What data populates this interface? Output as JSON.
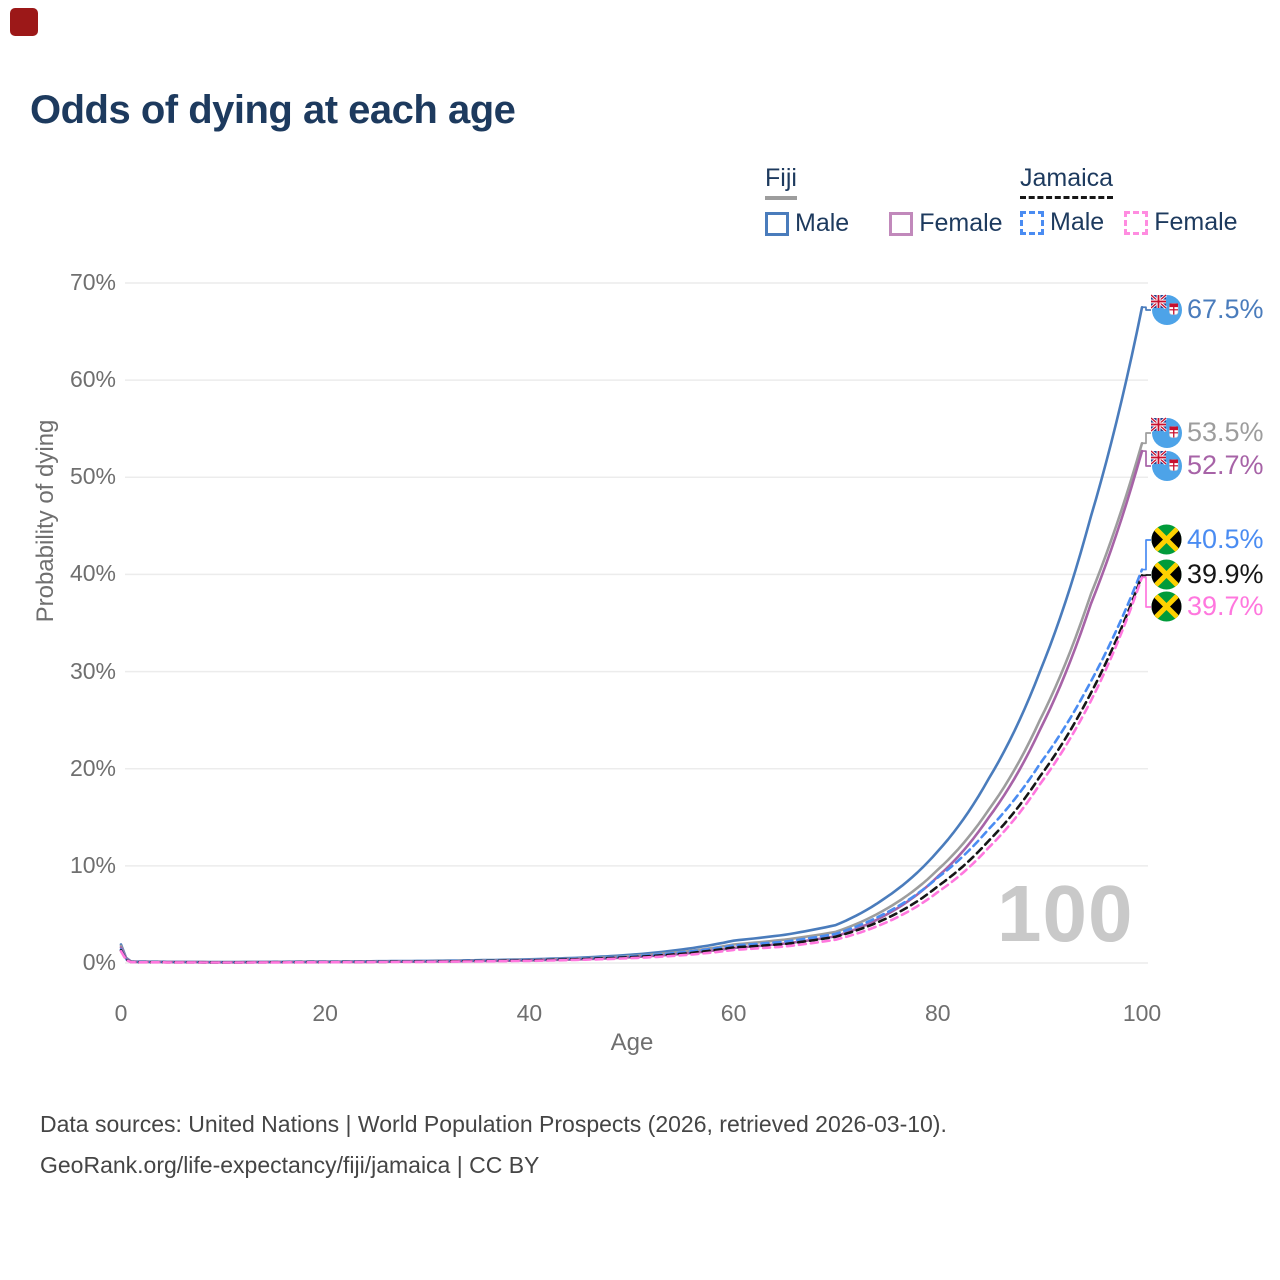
{
  "title": "Odds of dying at each age",
  "legend": {
    "groups": [
      {
        "country": "Fiji",
        "line_style": "solid",
        "line_color": "#9d9d9d",
        "items": [
          {
            "label": "Male",
            "color": "#4a7cbc",
            "dashed": false
          },
          {
            "label": "Female",
            "color": "#c189bb",
            "dashed": false
          }
        ]
      },
      {
        "country": "Jamaica",
        "line_style": "dashed",
        "line_color": "#161616",
        "items": [
          {
            "label": "Male",
            "color": "#4a8cf2",
            "dashed": true
          },
          {
            "label": "Female",
            "color": "#ff8ce0",
            "dashed": true
          }
        ]
      }
    ]
  },
  "footer": {
    "line1": "Data sources: United Nations | World Population Prospects (2026, retrieved 2026-03-10).",
    "line2": "GeoRank.org/life-expectancy/fiji/jamaica | CC BY"
  },
  "chart_data": {
    "type": "line",
    "title": "Odds of dying at each age",
    "xlabel": "Age",
    "ylabel": "Probability of dying",
    "x_ticks": [
      0,
      20,
      40,
      60,
      80,
      100
    ],
    "y_ticks": [
      "0%",
      "10%",
      "20%",
      "30%",
      "40%",
      "50%",
      "60%",
      "70%"
    ],
    "xlim": [
      0,
      100
    ],
    "ylim": [
      0,
      70
    ],
    "grid": "horizontal",
    "hover_age": "100",
    "legend_position": "top-right",
    "ages": [
      0,
      1,
      10,
      20,
      30,
      40,
      45,
      50,
      55,
      60,
      65,
      70,
      75,
      80,
      85,
      90,
      95,
      100
    ],
    "series": [
      {
        "id": "fiji-male",
        "name": "Fiji Male",
        "flag": "fiji",
        "color": "#4a7cbc",
        "dash": null,
        "end_label": "67.5%",
        "end_value": 67.5,
        "values": [
          1.9,
          0.15,
          0.1,
          0.15,
          0.22,
          0.38,
          0.55,
          0.85,
          1.4,
          2.3,
          2.9,
          3.9,
          6.8,
          11.5,
          19.0,
          30.0,
          46.0,
          67.5
        ]
      },
      {
        "id": "fiji-total",
        "name": "Fiji",
        "flag": "fiji",
        "color": "#9d9d9d",
        "dash": null,
        "end_label": "53.5%",
        "end_value": 53.5,
        "values": [
          1.75,
          0.13,
          0.08,
          0.12,
          0.18,
          0.32,
          0.46,
          0.72,
          1.15,
          1.9,
          2.4,
          3.2,
          5.6,
          9.6,
          15.8,
          25.0,
          38.0,
          53.5
        ]
      },
      {
        "id": "fiji-female",
        "name": "Fiji Female",
        "flag": "fiji",
        "color": "#a763a7",
        "dash": null,
        "end_label": "52.7%",
        "end_value": 52.7,
        "values": [
          1.6,
          0.12,
          0.07,
          0.1,
          0.15,
          0.27,
          0.38,
          0.6,
          0.95,
          1.55,
          2.0,
          2.75,
          5.0,
          8.9,
          15.0,
          24.0,
          37.0,
          52.7
        ]
      },
      {
        "id": "jamaica-male",
        "name": "Jamaica Male",
        "flag": "jamaica",
        "color": "#4a8cf2",
        "dash": "7,5",
        "end_label": "40.5%",
        "end_value": 40.5,
        "values": [
          1.4,
          0.1,
          0.07,
          0.11,
          0.17,
          0.3,
          0.44,
          0.68,
          1.1,
          1.8,
          2.2,
          3.0,
          5.2,
          8.8,
          13.8,
          20.5,
          29.0,
          40.5
        ]
      },
      {
        "id": "jamaica-total",
        "name": "Jamaica",
        "flag": "jamaica",
        "color": "#161616",
        "dash": "7,5",
        "end_label": "39.9%",
        "end_value": 39.9,
        "values": [
          1.3,
          0.09,
          0.06,
          0.1,
          0.15,
          0.27,
          0.4,
          0.6,
          0.95,
          1.6,
          1.95,
          2.7,
          4.6,
          7.9,
          12.6,
          19.2,
          27.8,
          39.9
        ]
      },
      {
        "id": "jamaica-female",
        "name": "Jamaica Female",
        "flag": "jamaica",
        "color": "#ff77de",
        "dash": "7,5",
        "end_label": "39.7%",
        "end_value": 39.7,
        "values": [
          1.2,
          0.08,
          0.05,
          0.08,
          0.12,
          0.22,
          0.33,
          0.5,
          0.8,
          1.35,
          1.7,
          2.4,
          4.2,
          7.3,
          11.9,
          18.4,
          27.0,
          39.7
        ]
      }
    ]
  }
}
